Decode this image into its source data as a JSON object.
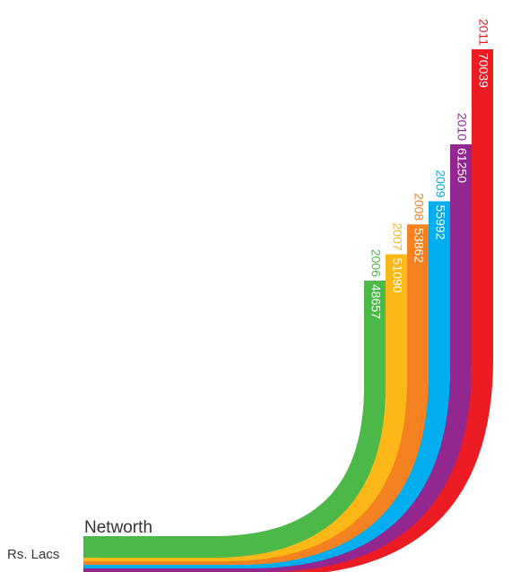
{
  "chart_data": {
    "type": "bar",
    "title": "Networth",
    "unit_label": "Rs. Lacs",
    "categories": [
      "2006",
      "2007",
      "2008",
      "2009",
      "2010",
      "2011"
    ],
    "values": [
      48657,
      51090,
      53862,
      55992,
      61250,
      70039
    ],
    "colors": [
      "#4cb848",
      "#fcb816",
      "#f58220",
      "#00aeef",
      "#92278f",
      "#ed1c24"
    ],
    "label_color_on_bar": "#ffffff"
  }
}
